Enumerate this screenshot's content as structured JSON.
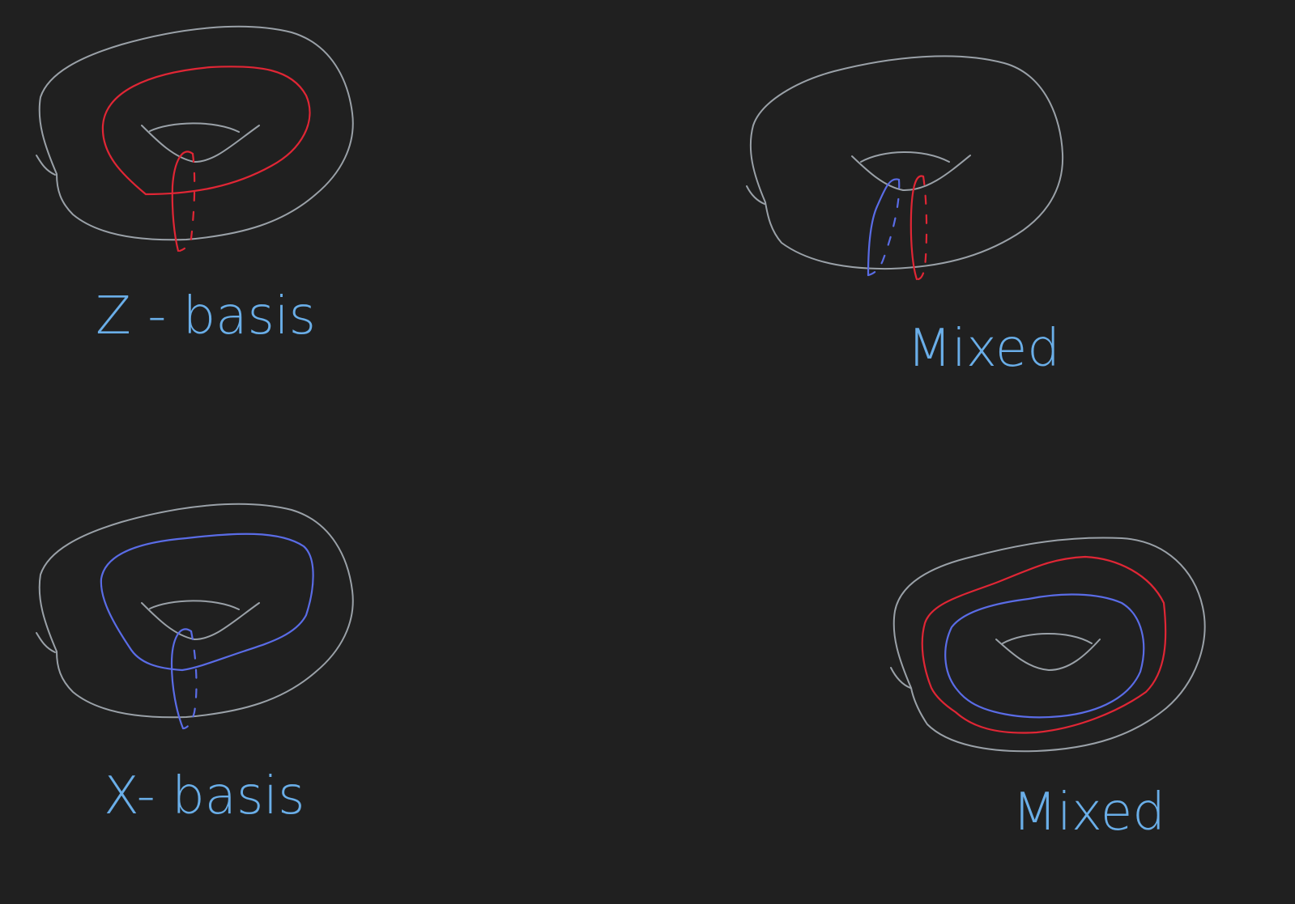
{
  "background": "#202020",
  "colors": {
    "torus_outline": "#9aa1a8",
    "z_loop": "#e02635",
    "x_loop": "#5a6ce6",
    "label": "#6aaee8"
  },
  "panels": [
    {
      "id": "top-left",
      "label": "Z - basis",
      "loops": [
        "z-longitude",
        "z-meridian"
      ]
    },
    {
      "id": "top-right",
      "label": "Mixed",
      "loops": [
        "x-meridian",
        "z-meridian"
      ]
    },
    {
      "id": "bottom-left",
      "label": "X- basis",
      "loops": [
        "x-longitude",
        "x-meridian"
      ]
    },
    {
      "id": "bottom-right",
      "label": "Mixed",
      "loops": [
        "z-longitude",
        "x-longitude"
      ]
    }
  ]
}
